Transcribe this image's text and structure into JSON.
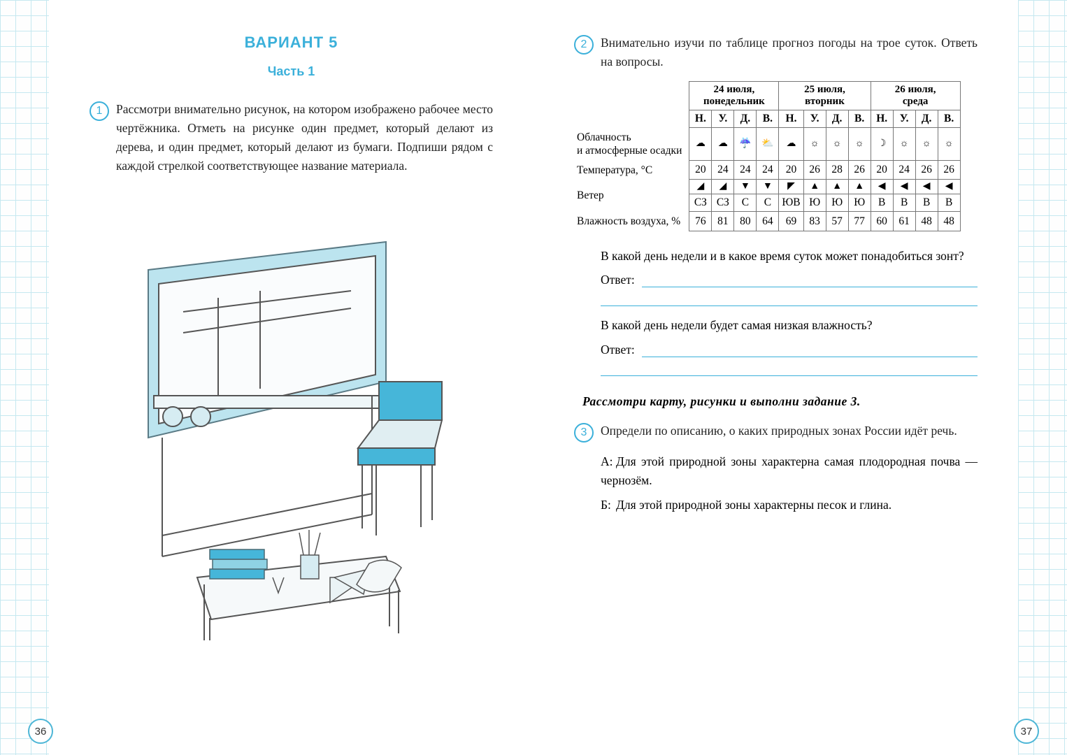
{
  "colors": {
    "accent": "#3bb0da",
    "grid": "#c5e8f0",
    "text": "#222",
    "line": "#3bb0da",
    "table_border": "#777"
  },
  "left_page": {
    "page_num": "36",
    "variant_title": "ВАРИАНТ 5",
    "part_title": "Часть 1",
    "task1_num": "1",
    "task1_text": "Рассмотри внимательно рисунок, на котором изображено рабочее место чертёжника. Отметь на рисунке один предмет, который делают из дерева, и один предмет, который делают из бумаги. Подпиши рядом с каждой стрелкой соответствующее название материала.",
    "illustration_desc": "Чертёжный стол-кульман с линейкой и чертежом, рядом стул, на переднем плане невысокий столик со стопкой книг, карандашами, циркулем и рулоном бумаги."
  },
  "right_page": {
    "page_num": "37",
    "task2_num": "2",
    "task2_text": "Внимательно изучи по таблице прогноз погоды на трое суток. Ответь на вопросы.",
    "weather_table": {
      "dates": [
        {
          "date": "24 июля,",
          "day": "понедельник"
        },
        {
          "date": "25 июля,",
          "day": "вторник"
        },
        {
          "date": "26 июля,",
          "day": "среда"
        }
      ],
      "time_labels": [
        "Н.",
        "У.",
        "Д.",
        "В."
      ],
      "rows": [
        {
          "label": "Облачность и атмосферные осадки",
          "icons": [
            "☁",
            "☁",
            "☔",
            "⛅",
            "☁",
            "☼",
            "☼",
            "☼",
            "☽",
            "☼",
            "☼",
            "☼"
          ]
        },
        {
          "label": "Температура, °C",
          "values": [
            "20",
            "24",
            "24",
            "24",
            "20",
            "26",
            "28",
            "26",
            "20",
            "24",
            "26",
            "26"
          ]
        },
        {
          "label": "Ветер",
          "arrows": [
            "◢",
            "◢",
            "▼",
            "▼",
            "◤",
            "▲",
            "▲",
            "▲",
            "◀",
            "◀",
            "◀",
            "◀"
          ],
          "dirs": [
            "СЗ",
            "СЗ",
            "С",
            "С",
            "ЮВ",
            "Ю",
            "Ю",
            "Ю",
            "В",
            "В",
            "В",
            "В"
          ]
        },
        {
          "label": "Влажность воздуха, %",
          "values": [
            "76",
            "81",
            "80",
            "64",
            "69",
            "83",
            "57",
            "77",
            "60",
            "61",
            "48",
            "48"
          ]
        }
      ]
    },
    "q1": "В какой день недели и в какое время суток может понадобиться зонт?",
    "q2": "В какой день недели будет самая низкая влажность?",
    "answer_label": "Ответ:",
    "instruction": "Рассмотри карту, рисунки и выполни задание 3.",
    "task3_num": "3",
    "task3_text": "Определи по описанию, о каких природных зонах России идёт речь.",
    "task3_A_key": "А:",
    "task3_A": "Для этой природной зоны характерна самая плодородная почва — чернозём.",
    "task3_B_key": "Б:",
    "task3_B": "Для этой природной зоны характерны песок и глина."
  }
}
